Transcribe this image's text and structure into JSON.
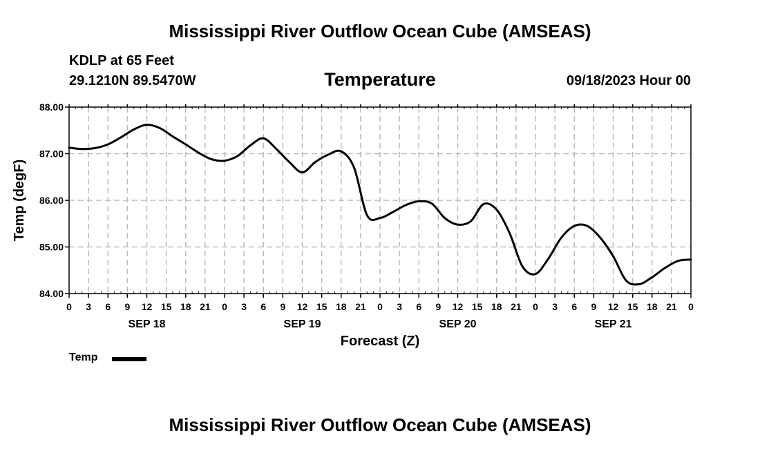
{
  "header": {
    "main_title": "Mississippi River Outflow Ocean Cube (AMSEAS)",
    "station": "KDLP at 65 Feet",
    "coords": "29.1210N  89.5470W",
    "datetime": "09/18/2023 Hour 00"
  },
  "footer": {
    "title": "Mississippi River Outflow Ocean Cube (AMSEAS)"
  },
  "legend": {
    "label": "Temp",
    "color": "#000000"
  },
  "chart_data": {
    "type": "line",
    "title": "Temperature",
    "xlabel": "Forecast (Z)",
    "ylabel": "Temp (degF)",
    "ylim": [
      84.0,
      88.0
    ],
    "xlim": [
      0,
      96
    ],
    "y_ticks": [
      "88.00",
      "87.00",
      "86.00",
      "85.00",
      "84.00"
    ],
    "y_tick_values": [
      88,
      87,
      86,
      85,
      84
    ],
    "x_tick_labels": [
      "0",
      "3",
      "6",
      "9",
      "12",
      "15",
      "18",
      "21",
      "0",
      "3",
      "6",
      "9",
      "12",
      "15",
      "18",
      "21",
      "0",
      "3",
      "6",
      "9",
      "12",
      "15",
      "18",
      "21",
      "0",
      "3",
      "6",
      "9",
      "12",
      "15",
      "18",
      "21",
      "0"
    ],
    "day_labels": [
      "SEP 18",
      "SEP 19",
      "SEP 20",
      "SEP 21"
    ],
    "day_label_hours": [
      12,
      36,
      60,
      84
    ],
    "grid": true,
    "series": [
      {
        "name": "Temp",
        "x": [
          0,
          2,
          4,
          6,
          8,
          10,
          12,
          14,
          16,
          18,
          20,
          22,
          24,
          26,
          28,
          30,
          32,
          34,
          36,
          38,
          40,
          42,
          44,
          46,
          48,
          50,
          52,
          54,
          56,
          58,
          60,
          62,
          64,
          66,
          68,
          70,
          72,
          74,
          76,
          78,
          80,
          82,
          84,
          86,
          88,
          90,
          92,
          94,
          96
        ],
        "values": [
          87.13,
          87.1,
          87.12,
          87.2,
          87.35,
          87.52,
          87.62,
          87.55,
          87.37,
          87.2,
          87.02,
          86.88,
          86.85,
          86.95,
          87.18,
          87.33,
          87.1,
          86.82,
          86.6,
          86.82,
          86.98,
          87.05,
          86.7,
          85.68,
          85.62,
          85.75,
          85.9,
          85.98,
          85.93,
          85.62,
          85.48,
          85.55,
          85.92,
          85.8,
          85.3,
          84.58,
          84.42,
          84.75,
          85.2,
          85.45,
          85.45,
          85.2,
          84.8,
          84.28,
          84.2,
          84.35,
          84.55,
          84.7,
          84.73
        ]
      }
    ]
  }
}
